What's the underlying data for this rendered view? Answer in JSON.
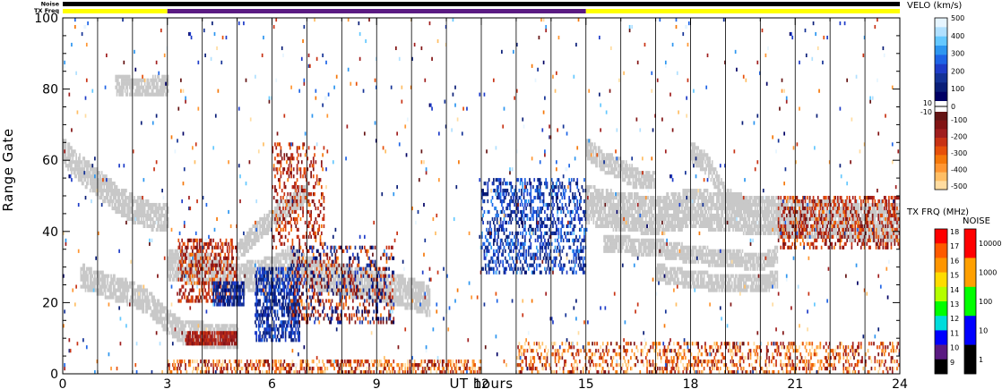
{
  "chart_data": {
    "type": "scatter",
    "xlabel": "UT hours",
    "ylabel": "Range Gate",
    "xlim": [
      0,
      24
    ],
    "ylim": [
      0,
      100
    ],
    "xticks": [
      0,
      3,
      6,
      9,
      12,
      15,
      18,
      21,
      24
    ],
    "yticks": [
      0,
      20,
      40,
      60,
      80,
      100
    ],
    "grid_vertical_hours": [
      1,
      2,
      3,
      4,
      5,
      6,
      7,
      8,
      9,
      10,
      11,
      12,
      13,
      14,
      15,
      16,
      17,
      18,
      19,
      20,
      21,
      22,
      23
    ],
    "status_bars": [
      {
        "name": "Noise",
        "segments": [
          {
            "x": [
              0,
              24
            ],
            "color": "#000000"
          }
        ]
      },
      {
        "name": "TX Freq",
        "segments": [
          {
            "x": [
              0,
              3
            ],
            "color": "#ffff00"
          },
          {
            "x": [
              3,
              15
            ],
            "color": "#5a1a82"
          },
          {
            "x": [
              15,
              24
            ],
            "color": "#ffff00"
          }
        ]
      }
    ],
    "ground_scatter_bands": [
      {
        "points": [
          [
            0,
            62
          ],
          [
            0.5,
            57
          ],
          [
            1,
            53
          ],
          [
            1.5,
            49
          ],
          [
            2,
            46
          ],
          [
            2.5,
            44
          ],
          [
            3,
            43
          ]
        ],
        "width": 6
      },
      {
        "points": [
          [
            0.5,
            27
          ],
          [
            1,
            25
          ],
          [
            2,
            22
          ],
          [
            2.5,
            19
          ],
          [
            3,
            14
          ],
          [
            3.5,
            11
          ],
          [
            4.5,
            10
          ],
          [
            5,
            9.5
          ]
        ],
        "width": 5
      },
      {
        "points": [
          [
            1.5,
            81
          ],
          [
            2,
            80
          ],
          [
            2.5,
            80
          ],
          [
            3,
            81
          ]
        ],
        "width": 4
      },
      {
        "points": [
          [
            3,
            30
          ],
          [
            4,
            29
          ],
          [
            5,
            26
          ],
          [
            6,
            28
          ],
          [
            6.5,
            31
          ],
          [
            7,
            28
          ],
          [
            8,
            26
          ],
          [
            9,
            24
          ],
          [
            10,
            22
          ],
          [
            10.5,
            20
          ]
        ],
        "width": 7
      },
      {
        "points": [
          [
            5,
            34
          ],
          [
            5.5,
            39
          ],
          [
            6,
            43
          ],
          [
            6.5,
            47
          ],
          [
            7,
            51
          ]
        ],
        "width": 4
      },
      {
        "points": [
          [
            15,
            63
          ],
          [
            15.5,
            59
          ],
          [
            16,
            57
          ],
          [
            16.5,
            54
          ],
          [
            17,
            54
          ]
        ],
        "width": 4
      },
      {
        "points": [
          [
            15,
            47
          ],
          [
            16,
            45
          ],
          [
            17,
            44
          ],
          [
            18,
            46
          ],
          [
            19,
            45
          ],
          [
            20,
            44
          ],
          [
            21,
            43
          ],
          [
            22,
            43
          ],
          [
            23,
            42
          ],
          [
            24,
            42
          ]
        ],
        "width": 9
      },
      {
        "points": [
          [
            15.5,
            36
          ],
          [
            17,
            35
          ],
          [
            18,
            33
          ],
          [
            19,
            32
          ],
          [
            20,
            31
          ],
          [
            20.5,
            33
          ]
        ],
        "width": 3
      },
      {
        "points": [
          [
            17,
            28
          ],
          [
            18,
            26
          ],
          [
            19,
            25
          ],
          [
            20,
            25
          ],
          [
            20.5,
            26
          ]
        ],
        "width": 3
      },
      {
        "points": [
          [
            18,
            62
          ],
          [
            18.5,
            58
          ],
          [
            19,
            49
          ],
          [
            19.5,
            46
          ]
        ],
        "width": 4
      }
    ],
    "velocity_clusters": [
      {
        "x": [
          3,
          12
        ],
        "y": [
          0,
          4
        ],
        "density": 0.45,
        "color_range": [
          -500,
          -50
        ]
      },
      {
        "x": [
          13,
          24
        ],
        "y": [
          0,
          9
        ],
        "density": 0.3,
        "color_range": [
          -500,
          -50
        ]
      },
      {
        "x": [
          3.5,
          5
        ],
        "y": [
          8,
          12
        ],
        "density": 0.85,
        "color_range": [
          -200,
          -100
        ]
      },
      {
        "x": [
          3.3,
          5
        ],
        "y": [
          20,
          38
        ],
        "density": 0.4,
        "color_range": [
          -300,
          -50
        ]
      },
      {
        "x": [
          4.3,
          5.2
        ],
        "y": [
          19,
          26
        ],
        "density": 0.7,
        "color_range": [
          50,
          200
        ]
      },
      {
        "x": [
          5.5,
          6.8
        ],
        "y": [
          9,
          30
        ],
        "density": 0.55,
        "color_range": [
          50,
          250
        ]
      },
      {
        "x": [
          6.5,
          9.5
        ],
        "y": [
          14,
          36
        ],
        "density": 0.3,
        "color_range": [
          -300,
          200
        ]
      },
      {
        "x": [
          6,
          7.5
        ],
        "y": [
          35,
          65
        ],
        "density": 0.22,
        "color_range": [
          -300,
          -50
        ]
      },
      {
        "x": [
          12,
          15
        ],
        "y": [
          28,
          55
        ],
        "density": 0.35,
        "color_range": [
          50,
          300
        ]
      },
      {
        "x": [
          20.5,
          24
        ],
        "y": [
          35,
          50
        ],
        "density": 0.35,
        "color_range": [
          -300,
          -50
        ]
      },
      {
        "x": [
          0,
          24
        ],
        "y": [
          0,
          100
        ],
        "density": 0.012,
        "color_range": [
          -500,
          500
        ]
      }
    ],
    "colorbars": {
      "velocity": {
        "title": "VELO (km/s)",
        "labels": [
          "500",
          "400",
          "300",
          "200",
          "100",
          "0",
          "-100",
          "-200",
          "-300",
          "-400",
          "-500"
        ],
        "gap_labels": [
          "10",
          "-10"
        ],
        "colors_positive": [
          "#e6f5ff",
          "#b0e0ff",
          "#64c8ff",
          "#2d96f0",
          "#1e64e6",
          "#1e3cc8",
          "#143296",
          "#0a1e78",
          "#000064"
        ],
        "colors_negative": [
          "#641414",
          "#821414",
          "#a01e1e",
          "#c83214",
          "#e6500a",
          "#f5780a",
          "#ff9632",
          "#ffbe64",
          "#ffdca0"
        ]
      },
      "tx_freq": {
        "title": "TX FRQ (MHz)",
        "labels": [
          "18",
          "17",
          "16",
          "15",
          "14",
          "13",
          "12",
          "11",
          "10",
          "9"
        ],
        "colors": [
          "#ff0000",
          "#ff5a00",
          "#ff9600",
          "#ffdc00",
          "#b4ff00",
          "#00ff00",
          "#00dcdc",
          "#0000ff",
          "#5a1a82",
          "#000000"
        ]
      },
      "noise": {
        "title": "NOISE",
        "labels": [
          "10000",
          "1000",
          "100",
          "10",
          "1"
        ],
        "colors": [
          "#ff0000",
          "#ffa000",
          "#00ff00",
          "#0000ff",
          "#000000"
        ]
      }
    }
  }
}
